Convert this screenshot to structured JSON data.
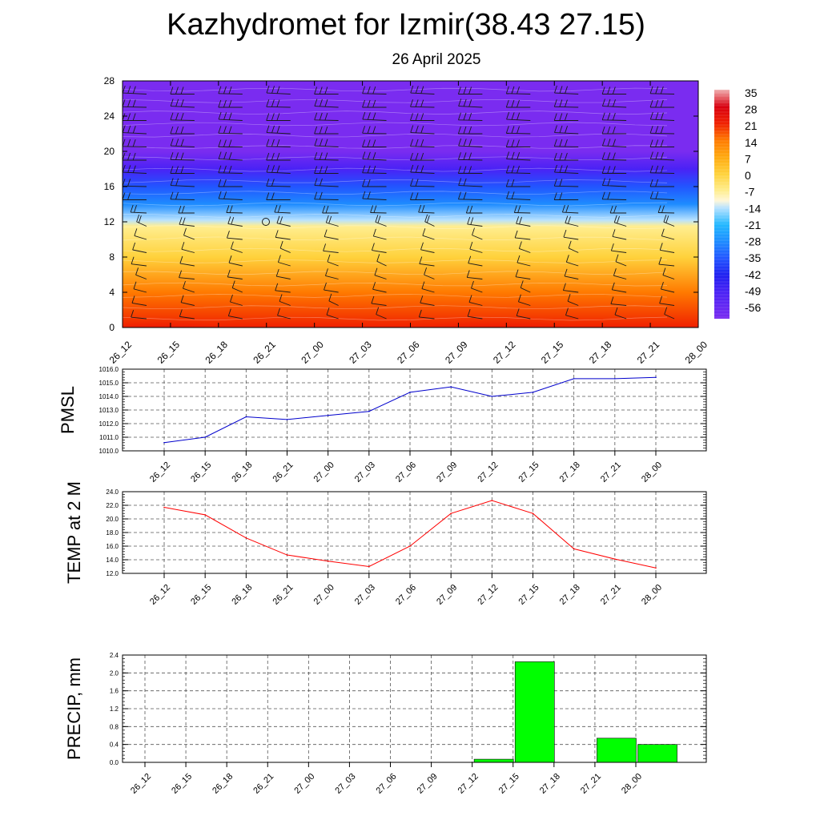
{
  "page": {
    "title": "Kazhydromet for Izmir(38.43 27.15)",
    "subtitle": "26 April 2025"
  },
  "chart_data": [
    {
      "type": "heatmap",
      "name": "vertical-profile",
      "x_ticks": [
        "26_12",
        "26_15",
        "26_18",
        "26_21",
        "27_00",
        "27_03",
        "27_06",
        "27_09",
        "27_12",
        "27_15",
        "27_18",
        "27_21",
        "28_00"
      ],
      "y_ticks": [
        "0",
        "4",
        "8",
        "12",
        "16",
        "20",
        "24",
        "28"
      ],
      "ylim": [
        0,
        28
      ],
      "colorbar_labels": [
        "35",
        "28",
        "21",
        "14",
        "7",
        "0",
        "-7",
        "-14",
        "-21",
        "-28",
        "-35",
        "-42",
        "-49",
        "-56"
      ],
      "color_stops": [
        {
          "value": -60,
          "color": "#7a2cf0"
        },
        {
          "value": -49,
          "color": "#4a22f5"
        },
        {
          "value": -42,
          "color": "#2020f0"
        },
        {
          "value": -35,
          "color": "#2255ff"
        },
        {
          "value": -28,
          "color": "#1e8cff"
        },
        {
          "value": -21,
          "color": "#22b8ff"
        },
        {
          "value": -14,
          "color": "#b8e2ff"
        },
        {
          "value": -11,
          "color": "#fff7d8"
        },
        {
          "value": -7,
          "color": "#ffee90"
        },
        {
          "value": 0,
          "color": "#ffd23c"
        },
        {
          "value": 7,
          "color": "#ffaa10"
        },
        {
          "value": 14,
          "color": "#ff7a00"
        },
        {
          "value": 21,
          "color": "#f02000"
        },
        {
          "value": 28,
          "color": "#d80010"
        },
        {
          "value": 35,
          "color": "#f0b0b0"
        }
      ],
      "vertical_profile": [
        {
          "h": 0,
          "t": 22
        },
        {
          "h": 4,
          "t": 15
        },
        {
          "h": 8,
          "t": 5
        },
        {
          "h": 11.5,
          "t": -5
        },
        {
          "h": 12.2,
          "t": -13
        },
        {
          "h": 14,
          "t": -24
        },
        {
          "h": 16,
          "t": -33
        },
        {
          "h": 18,
          "t": -44
        },
        {
          "h": 20,
          "t": -50
        },
        {
          "h": 24,
          "t": -55
        },
        {
          "h": 28,
          "t": -60
        }
      ]
    },
    {
      "type": "line",
      "name": "pmsl",
      "ylabel": "PMSL",
      "categories": [
        "26_12",
        "26_15",
        "26_18",
        "26_21",
        "27_00",
        "27_03",
        "27_06",
        "27_09",
        "27_12",
        "27_15",
        "27_18",
        "27_21",
        "28_00"
      ],
      "series": [
        {
          "values": [
            1010.6,
            1011.0,
            1012.5,
            1012.3,
            1012.6,
            1012.9,
            1014.3,
            1014.7,
            1014.0,
            1014.3,
            1015.3,
            1015.3,
            1015.4
          ],
          "color": "#0000cc"
        }
      ],
      "ylim": [
        1010.0,
        1016.0
      ],
      "y_ticks": [
        "1010.0",
        "1011.0",
        "1012.0",
        "1013.0",
        "1014.0",
        "1015.0",
        "1016.0"
      ],
      "grid": true
    },
    {
      "type": "line",
      "name": "temp",
      "ylabel": "TEMP at 2 M",
      "categories": [
        "26_12",
        "26_15",
        "26_18",
        "26_21",
        "27_00",
        "27_03",
        "27_06",
        "27_09",
        "27_12",
        "27_15",
        "27_18",
        "27_21",
        "28_00"
      ],
      "series": [
        {
          "values": [
            21.7,
            20.6,
            17.2,
            14.7,
            13.8,
            13.0,
            16.0,
            20.8,
            22.7,
            20.8,
            15.6,
            14.1,
            12.8
          ],
          "color": "#ff0000"
        }
      ],
      "ylim": [
        12.0,
        24.0
      ],
      "y_ticks": [
        "12.0",
        "14.0",
        "16.0",
        "18.0",
        "20.0",
        "22.0",
        "24.0"
      ],
      "grid": true
    },
    {
      "type": "bar",
      "name": "precip",
      "ylabel": "PRECIP, mm",
      "categories": [
        "26_12",
        "26_15",
        "26_18",
        "26_21",
        "27_00",
        "27_03",
        "27_06",
        "27_09",
        "27_12",
        "27_15",
        "27_18",
        "27_21",
        "28_00"
      ],
      "values": [
        0,
        0,
        0,
        0,
        0,
        0,
        0,
        0,
        0.07,
        2.25,
        0,
        0.54,
        0.4
      ],
      "color": "#00ff00",
      "ylim": [
        0.0,
        2.4
      ],
      "y_ticks": [
        "0.0",
        "0.4",
        "0.8",
        "1.2",
        "1.6",
        "2.0",
        "2.4"
      ],
      "grid": true
    }
  ]
}
